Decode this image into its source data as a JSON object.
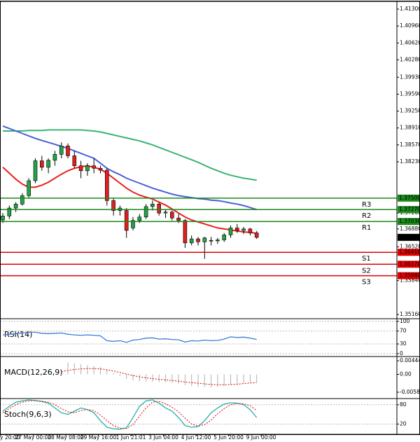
{
  "chart_data": [
    {
      "type": "candlestick",
      "ylim": [
        1.35075,
        1.41441
      ],
      "yticks": [
        {
          "value": 1.413,
          "label": "1.41300"
        },
        {
          "value": 1.4096,
          "label": "1.40960"
        },
        {
          "value": 1.4062,
          "label": "1.40620"
        },
        {
          "value": 1.4028,
          "label": "1.40280"
        },
        {
          "value": 1.3993,
          "label": "1.39930"
        },
        {
          "value": 1.3959,
          "label": "1.39590"
        },
        {
          "value": 1.3925,
          "label": "1.39250"
        },
        {
          "value": 1.3891,
          "label": "1.38910"
        },
        {
          "value": 1.3857,
          "label": "1.38570"
        },
        {
          "value": 1.3823,
          "label": "1.38230"
        },
        {
          "value": 1.372,
          "label": "1.37200"
        },
        {
          "value": 1.3688,
          "label": "1.36880"
        },
        {
          "value": 1.3652,
          "label": "1.36520"
        },
        {
          "value": 1.3584,
          "label": "1.35840"
        },
        {
          "value": 1.3516,
          "label": "1.35160"
        }
      ],
      "up_color": "#22a447",
      "down_color": "#e02020",
      "open": [
        1.3706,
        1.3714,
        1.373,
        1.3738,
        1.3755,
        1.3785,
        1.3825,
        1.3812,
        1.3826,
        1.3838,
        1.3855,
        1.3835,
        1.3815,
        1.3805,
        1.3815,
        1.381,
        1.3806,
        1.3745,
        1.3725,
        1.3725,
        1.369,
        1.3705,
        1.3712,
        1.3733,
        1.3738,
        1.372,
        1.3722,
        1.371,
        1.3705,
        1.366,
        1.3668,
        1.3662,
        1.3665,
        1.3664,
        1.3666,
        1.3676,
        1.369,
        1.3685,
        1.3688,
        1.368
      ],
      "high": [
        1.372,
        1.3735,
        1.3742,
        1.376,
        1.379,
        1.383,
        1.3835,
        1.383,
        1.3845,
        1.3862,
        1.386,
        1.3845,
        1.3825,
        1.382,
        1.383,
        1.3815,
        1.381,
        1.375,
        1.3735,
        1.373,
        1.3712,
        1.3718,
        1.3738,
        1.3745,
        1.3742,
        1.3728,
        1.3725,
        1.3718,
        1.3708,
        1.3675,
        1.3672,
        1.3672,
        1.3672,
        1.367,
        1.368,
        1.3695,
        1.3698,
        1.3692,
        1.369,
        1.3684
      ],
      "low": [
        1.37,
        1.3708,
        1.3722,
        1.3735,
        1.375,
        1.378,
        1.3805,
        1.38,
        1.3815,
        1.383,
        1.383,
        1.381,
        1.379,
        1.3795,
        1.38,
        1.38,
        1.3735,
        1.3715,
        1.3715,
        1.367,
        1.3685,
        1.37,
        1.3708,
        1.3725,
        1.3715,
        1.371,
        1.3705,
        1.37,
        1.365,
        1.3655,
        1.3655,
        1.3628,
        1.3655,
        1.3658,
        1.3662,
        1.367,
        1.368,
        1.3678,
        1.3675,
        1.3668
      ],
      "close": [
        1.3714,
        1.373,
        1.3738,
        1.3755,
        1.3785,
        1.3825,
        1.3812,
        1.3826,
        1.3838,
        1.3855,
        1.3835,
        1.3815,
        1.3805,
        1.3815,
        1.381,
        1.3806,
        1.3745,
        1.3725,
        1.373,
        1.3685,
        1.3705,
        1.3712,
        1.3733,
        1.3738,
        1.372,
        1.3722,
        1.371,
        1.3705,
        1.366,
        1.3668,
        1.3662,
        1.367,
        1.3664,
        1.3666,
        1.3676,
        1.369,
        1.3685,
        1.3688,
        1.368,
        1.36711
      ],
      "series": [
        {
          "color": "#3cb371",
          "values": [
            1.3885,
            1.3885,
            1.3885,
            1.3885,
            1.3886,
            1.3886,
            1.3886,
            1.3887,
            1.3887,
            1.3887,
            1.3887,
            1.3887,
            1.3887,
            1.3886,
            1.3885,
            1.3883,
            1.388,
            1.3877,
            1.3874,
            1.3871,
            1.3868,
            1.3865,
            1.3861,
            1.3857,
            1.3852,
            1.3847,
            1.3842,
            1.3837,
            1.3832,
            1.3827,
            1.3822,
            1.3816,
            1.381,
            1.3805,
            1.38,
            1.3796,
            1.3793,
            1.379,
            1.3788,
            1.3786
          ]
        },
        {
          "color": "#4a5fd8",
          "values": [
            1.3895,
            1.389,
            1.3885,
            1.388,
            1.3875,
            1.387,
            1.3866,
            1.3862,
            1.3858,
            1.3854,
            1.385,
            1.3845,
            1.384,
            1.3835,
            1.383,
            1.382,
            1.381,
            1.3803,
            1.3797,
            1.379,
            1.3785,
            1.378,
            1.3775,
            1.377,
            1.3766,
            1.3762,
            1.3758,
            1.3755,
            1.3753,
            1.3751,
            1.3749,
            1.3748,
            1.3746,
            1.3745,
            1.3743,
            1.374,
            1.3738,
            1.3735,
            1.3731,
            1.3727
          ]
        },
        {
          "color": "#e8201c",
          "values": [
            1.3812,
            1.38,
            1.3788,
            1.3778,
            1.3772,
            1.3772,
            1.3776,
            1.3782,
            1.379,
            1.3798,
            1.3805,
            1.381,
            1.3813,
            1.3815,
            1.3812,
            1.3808,
            1.38,
            1.379,
            1.378,
            1.377,
            1.3762,
            1.3756,
            1.3752,
            1.3748,
            1.3742,
            1.3736,
            1.3728,
            1.372,
            1.3712,
            1.3706,
            1.3702,
            1.3698,
            1.3694,
            1.369,
            1.3688,
            1.3686,
            1.3684,
            1.3682,
            1.3681,
            1.3679
          ]
        }
      ],
      "levels": {
        "names": [
          "R3",
          "R2",
          "R1",
          "S1",
          "S2",
          "S3"
        ],
        "values": [
          1.375,
          1.3727,
          1.3703,
          1.3641,
          1.3617,
          1.3594
        ],
        "value_labels": [
          "1.37500",
          "1.37270",
          "1.37030",
          "1.36410",
          "1.36170",
          "1.35940"
        ],
        "colors": [
          "#1a8a1a",
          "#1a8a1a",
          "#1a8a1a",
          "#e00000",
          "#e00000",
          "#e00000"
        ]
      },
      "x_labels": [
        "y 20:00",
        "27 May 00:00",
        "28 May 08:00",
        "29 May 16:00",
        "1 Jun 21:01",
        "3 Jun 04:00",
        "4 Jun 12:00",
        "5 Jun 20:00",
        "9 Jun 00:00"
      ]
    },
    {
      "type": "line",
      "title": "RSI(14)",
      "ylim": [
        -9,
        106
      ],
      "yticks": [
        100,
        70,
        30,
        0
      ],
      "series": [
        {
          "color": "#3b7dd8",
          "values": [
            58,
            60,
            62,
            64,
            66,
            66,
            63,
            62,
            63,
            64,
            60,
            58,
            57,
            58,
            57,
            55,
            40,
            38,
            40,
            35,
            42,
            44,
            48,
            49,
            45,
            46,
            44,
            43,
            36,
            40,
            39,
            42,
            40,
            41,
            45,
            52,
            50,
            51,
            48,
            44
          ]
        }
      ]
    },
    {
      "type": "macd",
      "title": "MACD(12,26,9)",
      "ylim": [
        -0.0079,
        0.0056
      ],
      "yticks": [
        0.004445,
        {
          "value": 0,
          "label": "0.00"
        },
        -0.005827
      ],
      "series": [
        {
          "color": "#b0b0b0",
          "values": [
            null,
            null,
            null,
            null,
            null,
            null,
            null,
            null,
            null,
            null,
            0.0039,
            0.0036,
            0.0033,
            0.003,
            0.0027,
            0.0024,
            0.0015,
            0.0005,
            -0.0005,
            -0.0015,
            -0.002,
            -0.0023,
            -0.0024,
            -0.0024,
            -0.0025,
            -0.0026,
            -0.0028,
            -0.003,
            -0.0035,
            -0.0038,
            -0.004,
            -0.0041,
            -0.0042,
            -0.0041,
            -0.0038,
            -0.0034,
            -0.0031,
            -0.0028,
            -0.0026,
            -0.0025
          ]
        },
        {
          "color": "#e00000",
          "values": [
            null,
            null,
            null,
            null,
            null,
            null,
            null,
            null,
            null,
            0.0009,
            0.0013,
            0.0016,
            0.0018,
            0.0019,
            0.0019,
            0.0018,
            0.0015,
            0.0011,
            0.0006,
            0.0001,
            -0.0004,
            -0.0008,
            -0.0011,
            -0.0014,
            -0.0016,
            -0.0018,
            -0.002,
            -0.0022,
            -0.0025,
            -0.0027,
            -0.0029,
            -0.0031,
            -0.0033,
            -0.0034,
            -0.0034,
            -0.0033,
            -0.0032,
            -0.003,
            -0.0028,
            -0.0027
          ]
        }
      ]
    },
    {
      "type": "stoch",
      "title": "Stoch(9,6,3)",
      "ylim": [
        -12,
        97
      ],
      "yticks": [
        80,
        20
      ],
      "series": [
        {
          "color": "#20b2aa",
          "values": [
            60,
            75,
            88,
            92,
            95,
            93,
            90,
            85,
            70,
            55,
            50,
            60,
            70,
            65,
            55,
            30,
            10,
            5,
            4,
            8,
            40,
            75,
            92,
            95,
            85,
            70,
            60,
            40,
            15,
            10,
            12,
            30,
            55,
            70,
            82,
            86,
            85,
            80,
            65,
            40
          ]
        },
        {
          "color": "#e00000",
          "values": [
            55,
            68,
            80,
            88,
            92,
            93,
            91,
            88,
            80,
            68,
            58,
            55,
            62,
            65,
            62,
            48,
            30,
            15,
            7,
            6,
            18,
            45,
            70,
            88,
            90,
            83,
            72,
            58,
            38,
            20,
            13,
            18,
            32,
            52,
            68,
            80,
            84,
            83,
            77,
            62
          ]
        }
      ]
    }
  ]
}
